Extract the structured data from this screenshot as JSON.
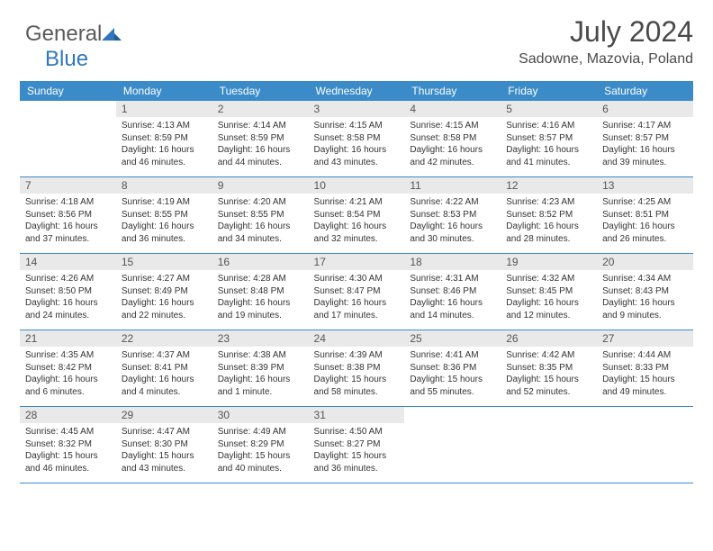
{
  "logo": {
    "word_a": "General",
    "word_b": "Blue",
    "mark_color": "#2f77bb",
    "gray": "#5a5a5a"
  },
  "title": {
    "month_year": "July 2024",
    "location": "Sadowne, Mazovia, Poland"
  },
  "colors": {
    "header_bg": "#3b8bc9",
    "header_text": "#ffffff",
    "daynum_bg": "#e9e9e9",
    "daynum_text": "#555555",
    "rule": "#3b8bc9",
    "body_text": "#333333"
  },
  "day_headers": [
    "Sunday",
    "Monday",
    "Tuesday",
    "Wednesday",
    "Thursday",
    "Friday",
    "Saturday"
  ],
  "weeks": [
    [
      null,
      {
        "n": "1",
        "sr": "Sunrise: 4:13 AM",
        "ss": "Sunset: 8:59 PM",
        "dl1": "Daylight: 16 hours",
        "dl2": "and 46 minutes."
      },
      {
        "n": "2",
        "sr": "Sunrise: 4:14 AM",
        "ss": "Sunset: 8:59 PM",
        "dl1": "Daylight: 16 hours",
        "dl2": "and 44 minutes."
      },
      {
        "n": "3",
        "sr": "Sunrise: 4:15 AM",
        "ss": "Sunset: 8:58 PM",
        "dl1": "Daylight: 16 hours",
        "dl2": "and 43 minutes."
      },
      {
        "n": "4",
        "sr": "Sunrise: 4:15 AM",
        "ss": "Sunset: 8:58 PM",
        "dl1": "Daylight: 16 hours",
        "dl2": "and 42 minutes."
      },
      {
        "n": "5",
        "sr": "Sunrise: 4:16 AM",
        "ss": "Sunset: 8:57 PM",
        "dl1": "Daylight: 16 hours",
        "dl2": "and 41 minutes."
      },
      {
        "n": "6",
        "sr": "Sunrise: 4:17 AM",
        "ss": "Sunset: 8:57 PM",
        "dl1": "Daylight: 16 hours",
        "dl2": "and 39 minutes."
      }
    ],
    [
      {
        "n": "7",
        "sr": "Sunrise: 4:18 AM",
        "ss": "Sunset: 8:56 PM",
        "dl1": "Daylight: 16 hours",
        "dl2": "and 37 minutes."
      },
      {
        "n": "8",
        "sr": "Sunrise: 4:19 AM",
        "ss": "Sunset: 8:55 PM",
        "dl1": "Daylight: 16 hours",
        "dl2": "and 36 minutes."
      },
      {
        "n": "9",
        "sr": "Sunrise: 4:20 AM",
        "ss": "Sunset: 8:55 PM",
        "dl1": "Daylight: 16 hours",
        "dl2": "and 34 minutes."
      },
      {
        "n": "10",
        "sr": "Sunrise: 4:21 AM",
        "ss": "Sunset: 8:54 PM",
        "dl1": "Daylight: 16 hours",
        "dl2": "and 32 minutes."
      },
      {
        "n": "11",
        "sr": "Sunrise: 4:22 AM",
        "ss": "Sunset: 8:53 PM",
        "dl1": "Daylight: 16 hours",
        "dl2": "and 30 minutes."
      },
      {
        "n": "12",
        "sr": "Sunrise: 4:23 AM",
        "ss": "Sunset: 8:52 PM",
        "dl1": "Daylight: 16 hours",
        "dl2": "and 28 minutes."
      },
      {
        "n": "13",
        "sr": "Sunrise: 4:25 AM",
        "ss": "Sunset: 8:51 PM",
        "dl1": "Daylight: 16 hours",
        "dl2": "and 26 minutes."
      }
    ],
    [
      {
        "n": "14",
        "sr": "Sunrise: 4:26 AM",
        "ss": "Sunset: 8:50 PM",
        "dl1": "Daylight: 16 hours",
        "dl2": "and 24 minutes."
      },
      {
        "n": "15",
        "sr": "Sunrise: 4:27 AM",
        "ss": "Sunset: 8:49 PM",
        "dl1": "Daylight: 16 hours",
        "dl2": "and 22 minutes."
      },
      {
        "n": "16",
        "sr": "Sunrise: 4:28 AM",
        "ss": "Sunset: 8:48 PM",
        "dl1": "Daylight: 16 hours",
        "dl2": "and 19 minutes."
      },
      {
        "n": "17",
        "sr": "Sunrise: 4:30 AM",
        "ss": "Sunset: 8:47 PM",
        "dl1": "Daylight: 16 hours",
        "dl2": "and 17 minutes."
      },
      {
        "n": "18",
        "sr": "Sunrise: 4:31 AM",
        "ss": "Sunset: 8:46 PM",
        "dl1": "Daylight: 16 hours",
        "dl2": "and 14 minutes."
      },
      {
        "n": "19",
        "sr": "Sunrise: 4:32 AM",
        "ss": "Sunset: 8:45 PM",
        "dl1": "Daylight: 16 hours",
        "dl2": "and 12 minutes."
      },
      {
        "n": "20",
        "sr": "Sunrise: 4:34 AM",
        "ss": "Sunset: 8:43 PM",
        "dl1": "Daylight: 16 hours",
        "dl2": "and 9 minutes."
      }
    ],
    [
      {
        "n": "21",
        "sr": "Sunrise: 4:35 AM",
        "ss": "Sunset: 8:42 PM",
        "dl1": "Daylight: 16 hours",
        "dl2": "and 6 minutes."
      },
      {
        "n": "22",
        "sr": "Sunrise: 4:37 AM",
        "ss": "Sunset: 8:41 PM",
        "dl1": "Daylight: 16 hours",
        "dl2": "and 4 minutes."
      },
      {
        "n": "23",
        "sr": "Sunrise: 4:38 AM",
        "ss": "Sunset: 8:39 PM",
        "dl1": "Daylight: 16 hours",
        "dl2": "and 1 minute."
      },
      {
        "n": "24",
        "sr": "Sunrise: 4:39 AM",
        "ss": "Sunset: 8:38 PM",
        "dl1": "Daylight: 15 hours",
        "dl2": "and 58 minutes."
      },
      {
        "n": "25",
        "sr": "Sunrise: 4:41 AM",
        "ss": "Sunset: 8:36 PM",
        "dl1": "Daylight: 15 hours",
        "dl2": "and 55 minutes."
      },
      {
        "n": "26",
        "sr": "Sunrise: 4:42 AM",
        "ss": "Sunset: 8:35 PM",
        "dl1": "Daylight: 15 hours",
        "dl2": "and 52 minutes."
      },
      {
        "n": "27",
        "sr": "Sunrise: 4:44 AM",
        "ss": "Sunset: 8:33 PM",
        "dl1": "Daylight: 15 hours",
        "dl2": "and 49 minutes."
      }
    ],
    [
      {
        "n": "28",
        "sr": "Sunrise: 4:45 AM",
        "ss": "Sunset: 8:32 PM",
        "dl1": "Daylight: 15 hours",
        "dl2": "and 46 minutes."
      },
      {
        "n": "29",
        "sr": "Sunrise: 4:47 AM",
        "ss": "Sunset: 8:30 PM",
        "dl1": "Daylight: 15 hours",
        "dl2": "and 43 minutes."
      },
      {
        "n": "30",
        "sr": "Sunrise: 4:49 AM",
        "ss": "Sunset: 8:29 PM",
        "dl1": "Daylight: 15 hours",
        "dl2": "and 40 minutes."
      },
      {
        "n": "31",
        "sr": "Sunrise: 4:50 AM",
        "ss": "Sunset: 8:27 PM",
        "dl1": "Daylight: 15 hours",
        "dl2": "and 36 minutes."
      },
      null,
      null,
      null
    ]
  ]
}
